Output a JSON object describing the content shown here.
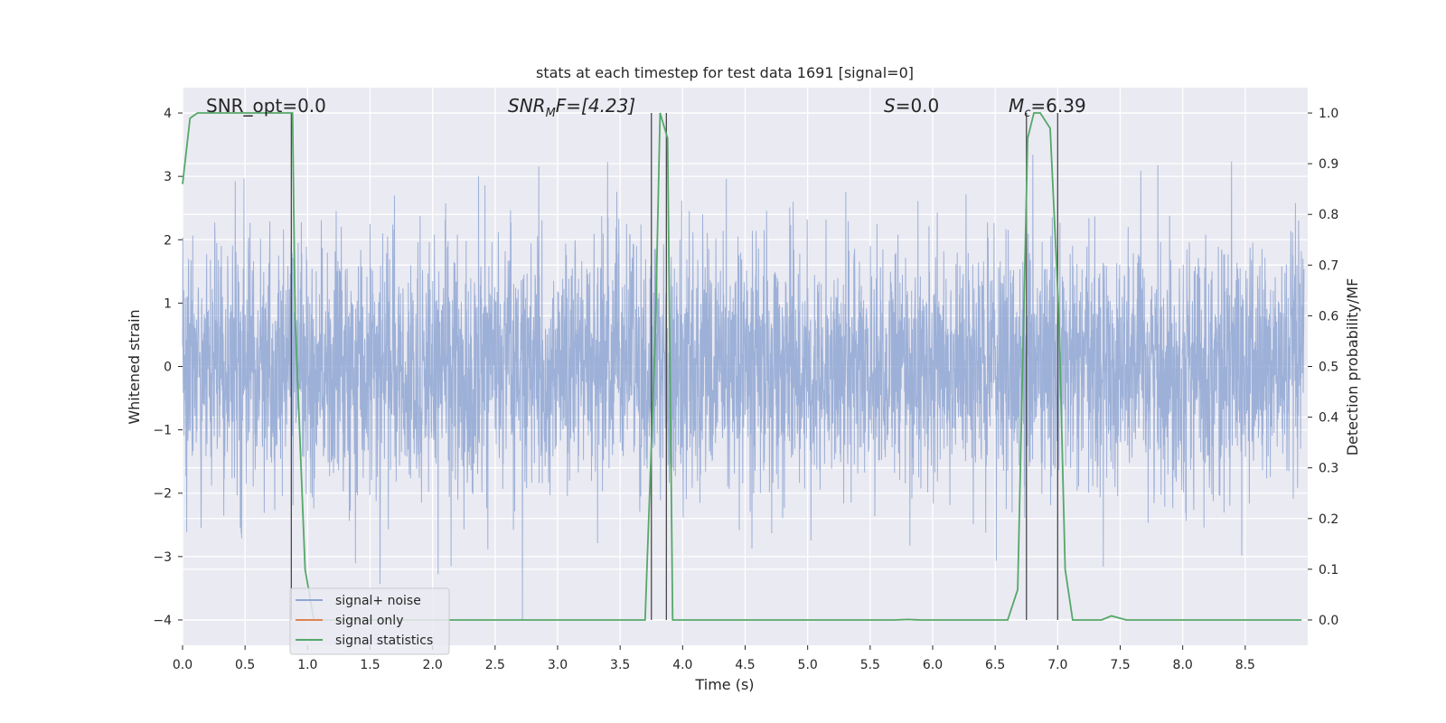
{
  "chart_data": {
    "type": "line",
    "title": "stats at each timestep for test data 1691 [signal=0]",
    "xlabel": "Time (s)",
    "ylabel": "Whitened strain",
    "ylabel_right": "Detection probability/MF",
    "xlim": [
      0.0,
      9.0
    ],
    "ylim": [
      -4.4,
      4.4
    ],
    "ylim_right": [
      -0.05,
      1.05
    ],
    "x_ticks": [
      "0.0",
      "0.5",
      "1.0",
      "1.5",
      "2.0",
      "2.5",
      "3.0",
      "3.5",
      "4.0",
      "4.5",
      "5.0",
      "5.5",
      "6.0",
      "6.5",
      "7.0",
      "7.5",
      "8.0",
      "8.5"
    ],
    "y_ticks": [
      "4",
      "3",
      "2",
      "1",
      "0",
      "−1",
      "−2",
      "−3",
      "−4"
    ],
    "y_ticks_right": [
      "1.0",
      "0.9",
      "0.8",
      "0.7",
      "0.6",
      "0.5",
      "0.4",
      "0.3",
      "0.2",
      "0.1",
      "0.0"
    ],
    "grid": true,
    "legend_position": "lower-left",
    "annotations": {
      "snr_opt": "SNR_opt=0.0",
      "snr_mf_base": "SNR",
      "snr_mf_sub": "M",
      "snr_mf_rest": "F=[4.23]",
      "s_italic": "S",
      "s_rest": "=0.0",
      "mc_base": "M",
      "mc_sub": "c",
      "mc_rest": "=6.39"
    },
    "series": [
      {
        "name": "signal+ noise",
        "color": "#8fa6d2",
        "description_kind": "whitened noise strain, amplitude roughly within ±1.6 with spikes up to about ±4"
      },
      {
        "name": "signal only",
        "color": "#dd8452",
        "values": "zero (signal=0)"
      },
      {
        "name": "signal statistics",
        "color": "#55a868",
        "axis": "right",
        "x": [
          0.0,
          0.06,
          0.12,
          0.88,
          0.9,
          0.98,
          1.05,
          3.6,
          3.7,
          3.78,
          3.82,
          3.88,
          3.92,
          3.95,
          5.7,
          5.8,
          5.9,
          6.6,
          6.68,
          6.76,
          6.81,
          6.86,
          6.94,
          7.01,
          7.06,
          7.12,
          7.35,
          7.43,
          7.55,
          8.95
        ],
        "y": [
          0.86,
          0.99,
          1.0,
          1.0,
          0.6,
          0.1,
          0.0,
          0.0,
          0.0,
          0.55,
          1.0,
          0.95,
          0.0,
          0.0,
          0.0,
          0.001,
          0.0,
          0.0,
          0.06,
          0.95,
          1.0,
          1.0,
          0.97,
          0.6,
          0.1,
          0.0,
          0.0,
          0.008,
          0.0,
          0.0
        ]
      }
    ],
    "vertical_markers_s": [
      0.87,
      3.75,
      3.87,
      6.75,
      7.0
    ]
  }
}
